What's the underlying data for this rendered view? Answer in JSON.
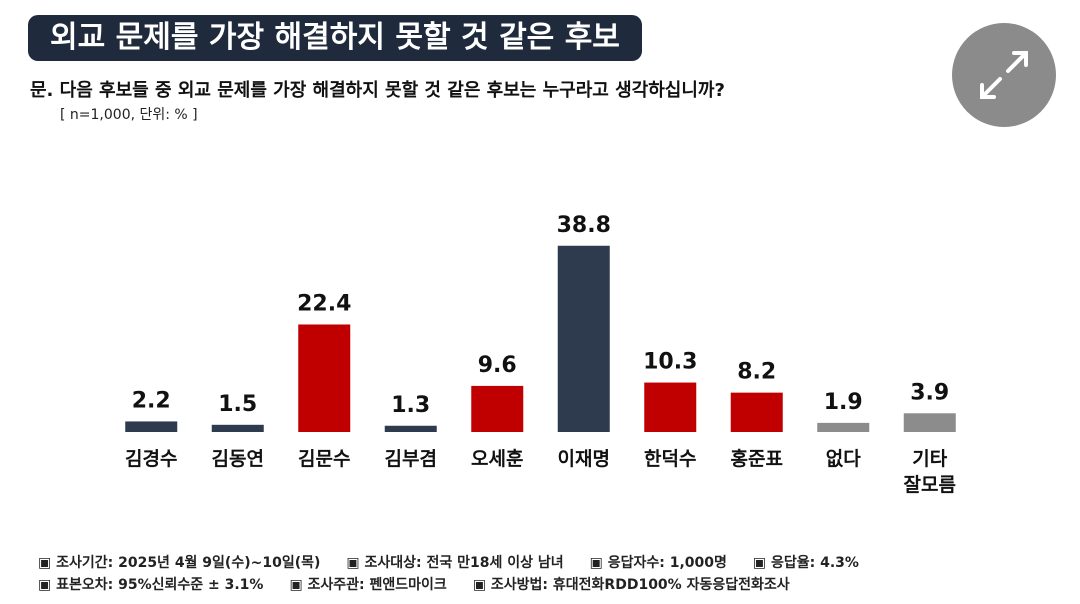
{
  "chart_data": {
    "type": "bar",
    "title": "외교 문제를 가장 해결하지 못할 것 같은 후보",
    "subtitle": "문. 다음 후보들 중 외교 문제를 가장 해결하지 못할 것 같은 후보는 누구라고 생각하십니까?",
    "note": "[ n=1,000, 단위: % ]",
    "categories": [
      "김경수",
      "김동연",
      "김문수",
      "김부겸",
      "오세훈",
      "이재명",
      "한덕수",
      "홍준표",
      "없다",
      "기타\n잘모름"
    ],
    "values": [
      2.2,
      1.5,
      22.4,
      1.3,
      9.6,
      38.8,
      10.3,
      8.2,
      1.9,
      3.9
    ],
    "colors": [
      "#2e3a4e",
      "#2e3a4e",
      "#c00000",
      "#2e3a4e",
      "#c00000",
      "#2e3a4e",
      "#c00000",
      "#c00000",
      "#8c8c8c",
      "#8c8c8c"
    ],
    "ylim": [
      0,
      40
    ],
    "footnotes": [
      [
        "▣ 조사기간: 2025년 4월 9일(수)~10일(목)",
        "▣ 조사대상: 전국 만18세 이상 남녀",
        "▣ 응답자수: 1,000명",
        "▣ 응답율: 4.3%"
      ],
      [
        "▣ 표본오차: 95%신뢰수준 ± 3.1%",
        "▣ 조사주관: 펜앤드마이크",
        "▣ 조사방법: 휴대전화RDD100% 자동응답전화조사"
      ]
    ]
  }
}
